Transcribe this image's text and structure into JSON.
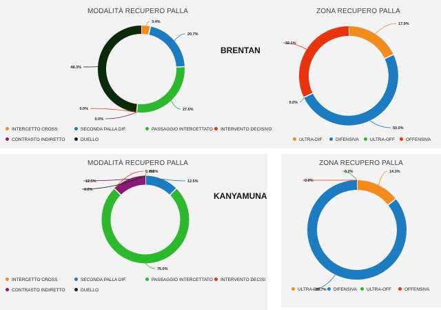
{
  "players": {
    "first": "BRENTAN",
    "second": "KANYAMUNA"
  },
  "colors": {
    "orange": "#f28c1e",
    "blue": "#1c7cbf",
    "green": "#2db82d",
    "red": "#e8340e",
    "purple": "#8a1a78",
    "darkgreen": "#0b2a0b"
  },
  "chart_data": [
    {
      "type": "pie",
      "id": "brentan-modalita",
      "title": "MODALITÀ RECUPERO PALLA",
      "categories": [
        "INTERCETTO CROSS",
        "SECONDA PALLA DIF.",
        "PASSAGGIO INTERCETTATO",
        "INTERVENTO DECISIVO",
        "CONTRASTO INDIRETTO",
        "DUELLO"
      ],
      "values": [
        3.4,
        20.7,
        27.6,
        0.0,
        0.0,
        48.3
      ],
      "labels": [
        "3.4%",
        "20.7%",
        "27.6%",
        "0.0%",
        "0.0%",
        "48.3%"
      ],
      "colors": [
        "#f28c1e",
        "#1c7cbf",
        "#2db82d",
        "#e8340e",
        "#8a1a78",
        "#0b2a0b"
      ],
      "donut": true
    },
    {
      "type": "pie",
      "id": "brentan-zona",
      "title": "ZONA RECUPERO PALLA",
      "categories": [
        "ULTRA-DIF",
        "DIFENSIVA",
        "ULTRA-OFF",
        "OFFENSIVA"
      ],
      "values": [
        17.9,
        50.0,
        0.0,
        32.1
      ],
      "labels": [
        "17.9%",
        "50.0%",
        "0.0%",
        "32.1%"
      ],
      "colors": [
        "#f28c1e",
        "#1c7cbf",
        "#2db82d",
        "#e8340e"
      ],
      "donut": true
    },
    {
      "type": "pie",
      "id": "kanyamuna-modalita",
      "title": "MODALITÀ RECUPERO PALLA",
      "categories": [
        "INTERCETTO CROSS",
        "SECONDA PALLA DIF.",
        "PASSAGGIO INTERCETTATO",
        "INTERVENTO DECISI",
        "CONTRASTO INDIRETTO",
        "DUELLO"
      ],
      "values": [
        0.0,
        12.5,
        75.0,
        0.0,
        12.5,
        0.0
      ],
      "labels": [
        "0.0%",
        "12.5%",
        "75.0%",
        "0.0%",
        "12.5%",
        "0.0%"
      ],
      "colors": [
        "#f28c1e",
        "#1c7cbf",
        "#2db82d",
        "#e8340e",
        "#8a1a78",
        "#0b2a0b"
      ],
      "donut": true
    },
    {
      "type": "pie",
      "id": "kanyamuna-zona",
      "title": "ZONA RECUPERO PALLA",
      "categories": [
        "ULTRA-DIF",
        "DIFENSIVA",
        "ULTRA-OFF",
        "OFFENSIVA"
      ],
      "values": [
        14.3,
        85.7,
        0.0,
        0.0
      ],
      "labels": [
        "14.3%",
        "85.7%",
        "0.0%",
        "0.0%"
      ],
      "colors": [
        "#f28c1e",
        "#1c7cbf",
        "#2db82d",
        "#e8340e"
      ],
      "donut": true
    }
  ]
}
